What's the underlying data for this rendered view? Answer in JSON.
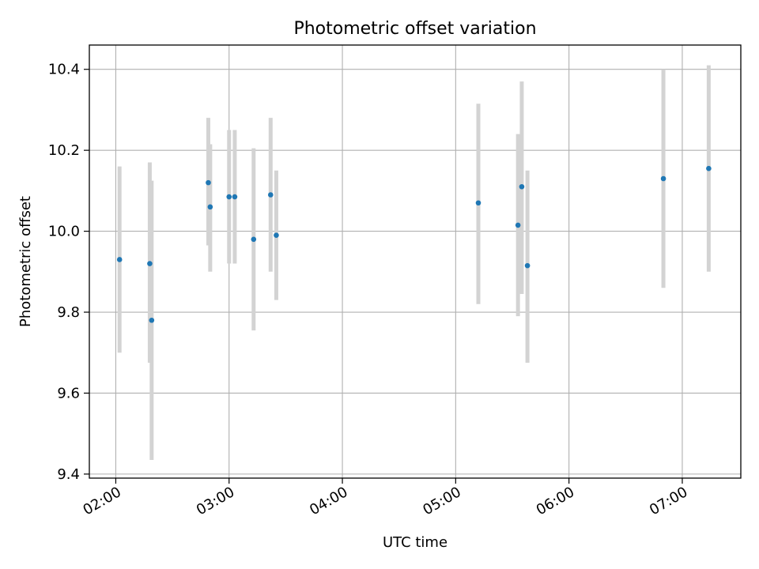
{
  "chart_data": {
    "type": "scatter",
    "title": "Photometric offset variation",
    "xlabel": "UTC time",
    "ylabel": "Photometric offset",
    "x_tick_labels": [
      "02:00",
      "03:00",
      "04:00",
      "05:00",
      "06:00",
      "07:00"
    ],
    "x_tick_minutes": [
      120,
      180,
      240,
      300,
      360,
      420
    ],
    "y_ticks": [
      9.4,
      9.6,
      9.8,
      10.0,
      10.2,
      10.4
    ],
    "y_tick_labels": [
      "9.4",
      "9.6",
      "9.8",
      "10.0",
      "10.2",
      "10.4"
    ],
    "xlim_minutes": [
      106,
      451
    ],
    "ylim": [
      9.39,
      10.46
    ],
    "grid": true,
    "marker_color": "#1f77b4",
    "errorbar_color": "#d3d3d3",
    "points": [
      {
        "t": "02:02",
        "y": 9.93,
        "low": 9.7,
        "high": 10.16
      },
      {
        "t": "02:18",
        "y": 9.92,
        "low": 9.675,
        "high": 10.17
      },
      {
        "t": "02:19",
        "y": 9.78,
        "low": 9.435,
        "high": 10.125
      },
      {
        "t": "02:49",
        "y": 10.12,
        "low": 9.965,
        "high": 10.28
      },
      {
        "t": "02:50",
        "y": 10.06,
        "low": 9.9,
        "high": 10.215
      },
      {
        "t": "03:00",
        "y": 10.085,
        "low": 9.92,
        "high": 10.25
      },
      {
        "t": "03:03",
        "y": 10.085,
        "low": 9.92,
        "high": 10.25
      },
      {
        "t": "03:13",
        "y": 9.98,
        "low": 9.755,
        "high": 10.205
      },
      {
        "t": "03:22",
        "y": 10.09,
        "low": 9.9,
        "high": 10.28
      },
      {
        "t": "03:25",
        "y": 9.99,
        "low": 9.83,
        "high": 10.15
      },
      {
        "t": "05:12",
        "y": 10.07,
        "low": 9.82,
        "high": 10.315
      },
      {
        "t": "05:33",
        "y": 10.015,
        "low": 9.79,
        "high": 10.24
      },
      {
        "t": "05:35",
        "y": 10.11,
        "low": 9.845,
        "high": 10.37
      },
      {
        "t": "05:38",
        "y": 9.915,
        "low": 9.675,
        "high": 10.15
      },
      {
        "t": "06:50",
        "y": 10.13,
        "low": 9.86,
        "high": 10.4
      },
      {
        "t": "07:14",
        "y": 10.155,
        "low": 9.9,
        "high": 10.41
      }
    ]
  }
}
